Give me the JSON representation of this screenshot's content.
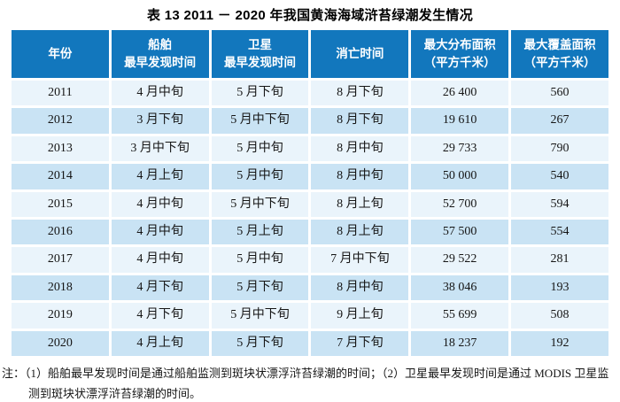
{
  "title": "表 13  2011 － 2020 年我国黄海海域浒苔绿潮发生情况",
  "colors": {
    "page_bg": "#ffffff",
    "title_text": "#000000",
    "header_bg": "#1277bd",
    "header_text": "#ffffff",
    "row_light": "#eaf4fb",
    "row_dark": "#c9e3f4",
    "grid": "#ffffff",
    "body_text": "#151515"
  },
  "table": {
    "headers": [
      {
        "line1": "年份",
        "line2": ""
      },
      {
        "line1": "船舶",
        "line2": "最早发现时间"
      },
      {
        "line1": "卫星",
        "line2": "最早发现时间"
      },
      {
        "line1": "消亡时间",
        "line2": ""
      },
      {
        "line1": "最大分布面积",
        "line2": "（平方千米）"
      },
      {
        "line1": "最大覆盖面积",
        "line2": "（平方千米）"
      }
    ],
    "column_keys": [
      "year",
      "ship_first_seen",
      "satellite_first_seen",
      "extinction_time",
      "max_distribution_area",
      "max_coverage_area"
    ],
    "rows": [
      {
        "year": "2011",
        "ship_first_seen": "4 月中旬",
        "satellite_first_seen": "5 月下旬",
        "extinction_time": "8 月下旬",
        "max_distribution_area": "26 400",
        "max_coverage_area": "560"
      },
      {
        "year": "2012",
        "ship_first_seen": "3 月下旬",
        "satellite_first_seen": "5 月中下旬",
        "extinction_time": "8 月下旬",
        "max_distribution_area": "19 610",
        "max_coverage_area": "267"
      },
      {
        "year": "2013",
        "ship_first_seen": "3 月中下旬",
        "satellite_first_seen": "5 月中旬",
        "extinction_time": "8 月中旬",
        "max_distribution_area": "29 733",
        "max_coverage_area": "790"
      },
      {
        "year": "2014",
        "ship_first_seen": "4 月上旬",
        "satellite_first_seen": "5 月中旬",
        "extinction_time": "8 月中旬",
        "max_distribution_area": "50 000",
        "max_coverage_area": "540"
      },
      {
        "year": "2015",
        "ship_first_seen": "4 月中旬",
        "satellite_first_seen": "5 月中下旬",
        "extinction_time": "8 月上旬",
        "max_distribution_area": "52 700",
        "max_coverage_area": "594"
      },
      {
        "year": "2016",
        "ship_first_seen": "4 月中旬",
        "satellite_first_seen": "5 月上旬",
        "extinction_time": "8 月上旬",
        "max_distribution_area": "57 500",
        "max_coverage_area": "554"
      },
      {
        "year": "2017",
        "ship_first_seen": "4 月中旬",
        "satellite_first_seen": "5 月中旬",
        "extinction_time": "7 月中下旬",
        "max_distribution_area": "29 522",
        "max_coverage_area": "281"
      },
      {
        "year": "2018",
        "ship_first_seen": "4 月下旬",
        "satellite_first_seen": "5 月下旬",
        "extinction_time": "8 月中旬",
        "max_distribution_area": "38 046",
        "max_coverage_area": "193"
      },
      {
        "year": "2019",
        "ship_first_seen": "4 月下旬",
        "satellite_first_seen": "5 月中下旬",
        "extinction_time": "9 月上旬",
        "max_distribution_area": "55 699",
        "max_coverage_area": "508"
      },
      {
        "year": "2020",
        "ship_first_seen": "4 月上旬",
        "satellite_first_seen": "5 月下旬",
        "extinction_time": "7 月下旬",
        "max_distribution_area": "18 237",
        "max_coverage_area": "192"
      }
    ]
  },
  "note": "注：（1）船舶最早发现时间是通过船舶监测到斑块状漂浮浒苔绿潮的时间；（2）卫星最早发现时间是通过 MODIS 卫星监测到斑块状漂浮浒苔绿潮的时间。"
}
